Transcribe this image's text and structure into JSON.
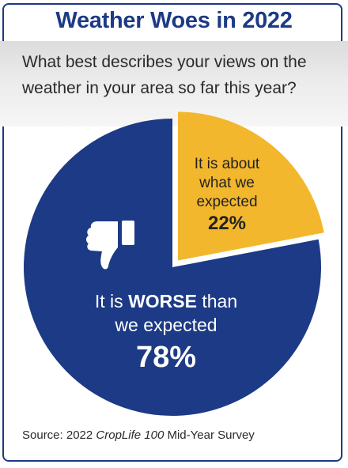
{
  "title": "Weather Woes in 2022",
  "question": "What best describes your views on the weather in your area so far this year?",
  "source": {
    "prefix": "Source: 2022 ",
    "publication": "CropLife 100",
    "suffix": " Mid-Year Survey"
  },
  "icon": "thumbs-down-icon",
  "colors": {
    "title": "#1d3a86",
    "worse": "#1d3a86",
    "expected": "#f3b72e"
  },
  "chart_data": {
    "type": "pie",
    "slices": [
      {
        "key": "expected",
        "value": 22,
        "label_lines": [
          "It is about",
          "what we",
          "expected"
        ],
        "percent_label": "22%",
        "exploded": true
      },
      {
        "key": "worse",
        "value": 78,
        "label_pre": "It is ",
        "label_emph": "WORSE",
        "label_post": " than",
        "label_line2": "we expected",
        "percent_label": "78%",
        "exploded": false
      }
    ]
  }
}
